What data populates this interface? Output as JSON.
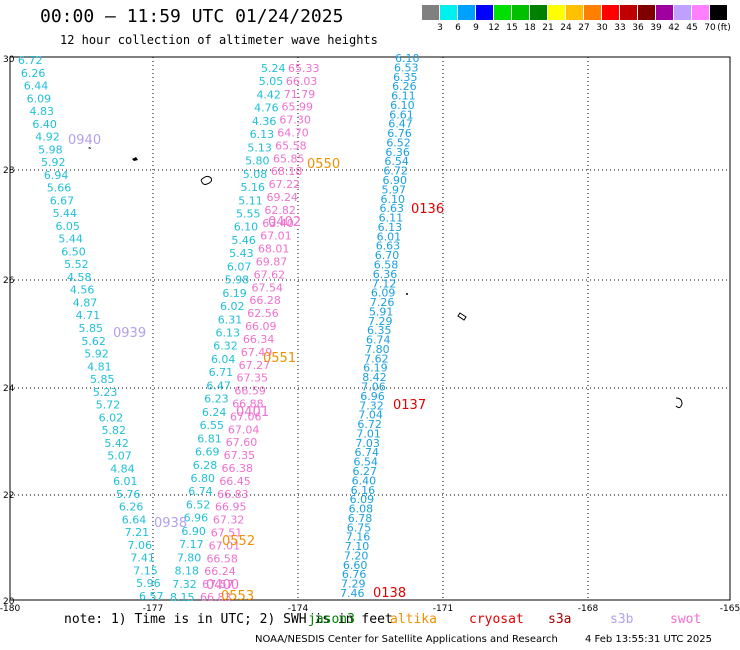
{
  "header": {
    "title": "00:00 – 11:59 UTC 01/24/2025",
    "subtitle": "12 hour collection of altimeter wave heights"
  },
  "color_scale": {
    "unit": "(ft)",
    "colors": [
      "#808080",
      "#00f0f0",
      "#00a0ff",
      "#0000ff",
      "#00e000",
      "#00c000",
      "#008000",
      "#ffff00",
      "#ffc000",
      "#ff8000",
      "#ff0000",
      "#c00000",
      "#800000",
      "#a000a0",
      "#c0a0ff",
      "#ff80ff",
      "#000000"
    ],
    "labels": [
      "3",
      "6",
      "9",
      "12",
      "15",
      "18",
      "21",
      "24",
      "27",
      "30",
      "33",
      "36",
      "39",
      "42",
      "45",
      "70"
    ]
  },
  "axes": {
    "x_ticks": [
      "-180",
      "-177",
      "-174",
      "-171",
      "-168",
      "-165"
    ],
    "y_ticks": [
      "30",
      "28",
      "26",
      "24",
      "22",
      "20"
    ]
  },
  "passes": [
    {
      "label": "0940",
      "color": "#b0a0ee"
    },
    {
      "label": "0939",
      "color": "#b0a0ee"
    },
    {
      "label": "0938",
      "color": "#b0a0ee"
    },
    {
      "label": "0550",
      "color": "#f09000"
    },
    {
      "label": "0551",
      "color": "#f09000"
    },
    {
      "label": "0552",
      "color": "#f09000"
    },
    {
      "label": "0553",
      "color": "#f09000"
    },
    {
      "label": "0402",
      "color": "#f070d0"
    },
    {
      "label": "0401",
      "color": "#f070d0"
    },
    {
      "label": "0400",
      "color": "#f070d0"
    },
    {
      "label": "0136",
      "color": "#e00000"
    },
    {
      "label": "0137",
      "color": "#e00000"
    },
    {
      "label": "0138",
      "color": "#e00000"
    }
  ],
  "tracks": {
    "cyan_west": [
      "6.72",
      "6.26",
      "6.44",
      "6.09",
      "4.83",
      "6.40",
      "4.92",
      "5.98",
      "5.92",
      "6.94",
      "5.66",
      "6.67",
      "5.44",
      "6.05",
      "5.44",
      "6.50",
      "5.52",
      "4.58",
      "4.56",
      "4.87",
      "4.71",
      "5.85",
      "5.62",
      "5.92",
      "4.81",
      "5.85",
      "5.23",
      "5.72",
      "6.02",
      "5.82",
      "5.42",
      "5.07",
      "4.84",
      "6.01",
      "5.76",
      "6.26",
      "6.64",
      "7.21",
      "7.06",
      "7.41",
      "7.15",
      "5.96",
      "6.57"
    ],
    "cyan_mid": [
      "5.24",
      "5.05",
      "4.42",
      "4.76",
      "4.36",
      "6.13",
      "5.13",
      "5.80",
      "5.08",
      "5.16",
      "5.11",
      "5.55",
      "6.10",
      "5.46",
      "5.43",
      "6.07",
      "5.98",
      "6.19",
      "6.02",
      "6.31",
      "6.13",
      "6.32",
      "6.04",
      "6.71",
      "6.47",
      "6.23",
      "6.24",
      "6.55",
      "6.81",
      "6.69",
      "6.28",
      "6.80",
      "6.74",
      "6.52",
      "6.96",
      "6.90",
      "7.17",
      "7.80",
      "8.18",
      "7.32",
      "8.15"
    ],
    "pink_mid": [
      "65.33",
      "66.03",
      "71.79",
      "65.99",
      "67.30",
      "64.70",
      "65.58",
      "65.85",
      "68.18",
      "67.22",
      "69.24",
      "62.82",
      "63.40",
      "67.01",
      "68.01",
      "69.87",
      "67.62",
      "67.54",
      "66.28",
      "62.56",
      "66.09",
      "66.34",
      "67.49",
      "67.27",
      "67.35",
      "66.59",
      "66.88",
      "67.06",
      "67.04",
      "67.60",
      "67.35",
      "66.38",
      "66.45",
      "66.83",
      "66.95",
      "67.32",
      "67.51",
      "67.01",
      "66.58",
      "66.24",
      "67.57",
      "66.83"
    ],
    "blue_east": [
      "6.10",
      "6.53",
      "6.35",
      "6.26",
      "6.11",
      "6.10",
      "6.61",
      "6.47",
      "6.76",
      "6.52",
      "6.36",
      "6.54",
      "6.72",
      "6.90",
      "5.97",
      "6.10",
      "6.63",
      "6.11",
      "6.13",
      "6.01",
      "6.63",
      "6.70",
      "6.58",
      "6.36",
      "7.12",
      "6.09",
      "7.26",
      "5.91",
      "7.29",
      "6.35",
      "6.74",
      "7.80",
      "7.62",
      "6.19",
      "8.42",
      "7.06",
      "6.96",
      "7.32",
      "7.04",
      "6.72",
      "7.01",
      "7.03",
      "6.74",
      "6.54",
      "6.27",
      "6.40",
      "6.16",
      "6.09",
      "6.08",
      "6.78",
      "6.75",
      "7.16",
      "7.10",
      "7.20",
      "6.60",
      "6.76",
      "7.29",
      "7.46"
    ]
  },
  "footer": {
    "note": "note: 1) Time is in UTC; 2) SWH is in feet",
    "satellites": [
      {
        "name": "jason3",
        "color": "#008000"
      },
      {
        "name": "altika",
        "color": "#f09000"
      },
      {
        "name": "cryosat",
        "color": "#e00000"
      },
      {
        "name": "s3a",
        "color": "#a00000"
      },
      {
        "name": "s3b",
        "color": "#b0a0ee"
      },
      {
        "name": "swot",
        "color": "#f070d0"
      }
    ],
    "credit": "NOAA/NESDIS Center for Satellite Applications and Research",
    "timestamp": "4 Feb 13:55:31 UTC 2025"
  }
}
